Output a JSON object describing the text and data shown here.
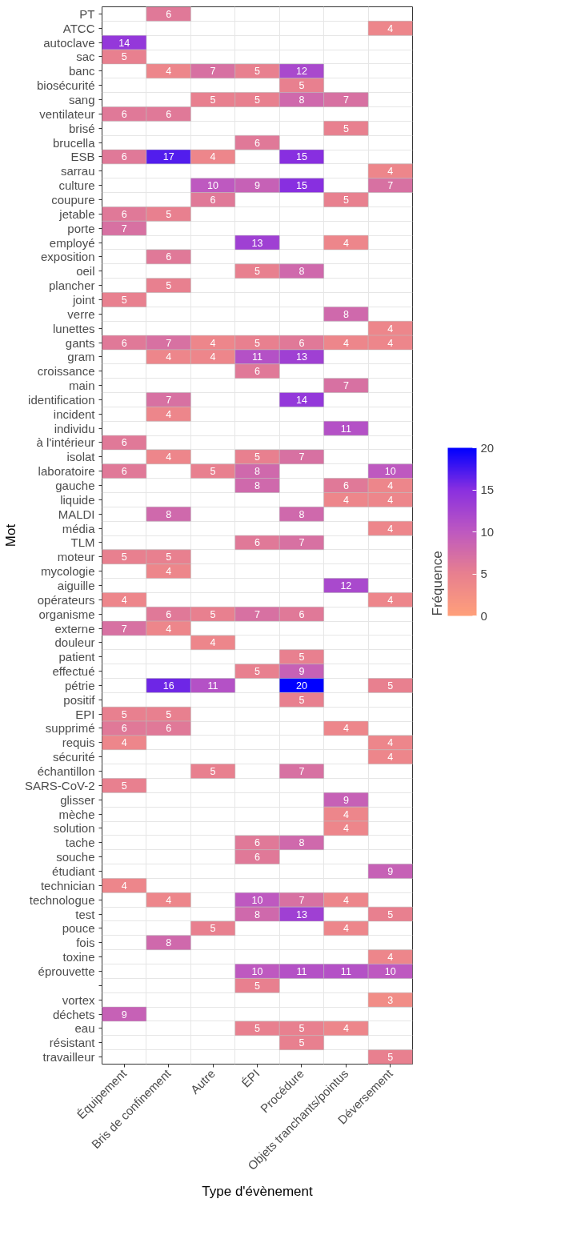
{
  "chart_data": {
    "type": "heatmap",
    "xlabel": "Type d'évènement",
    "ylabel": "Mot",
    "legend_title": "Fréquence",
    "categories": [
      "Équipement",
      "Bris de confinement",
      "Autre",
      "ÉPI",
      "Procédure",
      "Objets tranchants/pointus",
      "Déversement"
    ],
    "y_categories": [
      "PT",
      "ATCC",
      "autoclave",
      "sac",
      "banc",
      "biosécurité",
      "sang",
      "ventilateur",
      "brisé",
      "brucella",
      "ESB",
      "sarrau",
      "culture",
      "coupure",
      "jetable",
      "porte",
      "employé",
      "exposition",
      "oeil",
      "plancher",
      "joint",
      "verre",
      "lunettes",
      "gants",
      "gram",
      "croissance",
      "main",
      "identification",
      "incident",
      "individu",
      "à l'intérieur",
      "isolat",
      "laboratoire",
      "gauche",
      "liquide",
      "MALDI",
      "média",
      "TLM",
      "moteur",
      "mycologie",
      "aiguille",
      "opérateurs",
      "organisme",
      "externe",
      "douleur",
      "patient",
      "effectué",
      "pétrie",
      "positif",
      "EPI",
      "supprimé",
      "requis",
      "sécurité",
      "échantillon",
      "SARS-CoV-2",
      "glisser",
      "mèche",
      "solution",
      "tache",
      "souche",
      "étudiant",
      "technician",
      "technologue",
      "test",
      "pouce",
      "fois",
      "toxine",
      "éprouvette",
      null,
      "vortex",
      "déchets",
      "eau",
      "résistant",
      "travailleur"
    ],
    "cells": [
      [
        null,
        6,
        null,
        null,
        null,
        null,
        null
      ],
      [
        null,
        null,
        null,
        null,
        null,
        null,
        4
      ],
      [
        14,
        null,
        null,
        null,
        null,
        null,
        null
      ],
      [
        5,
        null,
        null,
        null,
        null,
        null,
        null
      ],
      [
        null,
        4,
        7,
        5,
        12,
        null,
        null
      ],
      [
        null,
        null,
        null,
        null,
        5,
        null,
        null
      ],
      [
        null,
        null,
        5,
        5,
        8,
        7,
        null
      ],
      [
        6,
        6,
        null,
        null,
        null,
        null,
        null
      ],
      [
        null,
        null,
        null,
        null,
        null,
        5,
        null
      ],
      [
        null,
        null,
        null,
        6,
        null,
        null,
        null
      ],
      [
        6,
        17,
        4,
        null,
        15,
        null,
        null
      ],
      [
        null,
        null,
        null,
        null,
        null,
        null,
        4
      ],
      [
        null,
        null,
        10,
        9,
        15,
        null,
        7
      ],
      [
        null,
        null,
        6,
        null,
        null,
        5,
        null
      ],
      [
        6,
        5,
        null,
        null,
        null,
        null,
        null
      ],
      [
        7,
        null,
        null,
        null,
        null,
        null,
        null
      ],
      [
        null,
        null,
        null,
        13,
        null,
        4,
        null
      ],
      [
        null,
        6,
        null,
        null,
        null,
        null,
        null
      ],
      [
        null,
        null,
        null,
        5,
        8,
        null,
        null
      ],
      [
        null,
        5,
        null,
        null,
        null,
        null,
        null
      ],
      [
        5,
        null,
        null,
        null,
        null,
        null,
        null
      ],
      [
        null,
        null,
        null,
        null,
        null,
        8,
        null
      ],
      [
        null,
        null,
        null,
        null,
        null,
        null,
        4
      ],
      [
        6,
        7,
        4,
        5,
        6,
        4,
        4
      ],
      [
        null,
        4,
        4,
        11,
        13,
        null,
        null
      ],
      [
        null,
        null,
        null,
        6,
        null,
        null,
        null
      ],
      [
        null,
        null,
        null,
        null,
        null,
        7,
        null
      ],
      [
        null,
        7,
        null,
        null,
        14,
        null,
        null
      ],
      [
        null,
        4,
        null,
        null,
        null,
        null,
        null
      ],
      [
        null,
        null,
        null,
        null,
        null,
        11,
        null
      ],
      [
        6,
        null,
        null,
        null,
        null,
        null,
        null
      ],
      [
        null,
        4,
        null,
        5,
        7,
        null,
        null
      ],
      [
        6,
        null,
        5,
        8,
        null,
        null,
        10
      ],
      [
        null,
        null,
        null,
        8,
        null,
        6,
        4
      ],
      [
        null,
        null,
        null,
        null,
        null,
        4,
        4
      ],
      [
        null,
        8,
        null,
        null,
        8,
        null,
        null
      ],
      [
        null,
        null,
        null,
        null,
        null,
        null,
        4
      ],
      [
        null,
        null,
        null,
        6,
        7,
        null,
        null
      ],
      [
        5,
        5,
        null,
        null,
        null,
        null,
        null
      ],
      [
        null,
        4,
        null,
        null,
        null,
        null,
        null
      ],
      [
        null,
        null,
        null,
        null,
        null,
        12,
        null
      ],
      [
        4,
        null,
        null,
        null,
        null,
        null,
        4
      ],
      [
        null,
        6,
        5,
        7,
        6,
        null,
        null
      ],
      [
        7,
        4,
        null,
        null,
        null,
        null,
        null
      ],
      [
        null,
        null,
        4,
        null,
        null,
        null,
        null
      ],
      [
        null,
        null,
        null,
        null,
        5,
        null,
        null
      ],
      [
        null,
        null,
        null,
        5,
        9,
        null,
        null
      ],
      [
        null,
        16,
        11,
        null,
        20,
        null,
        5
      ],
      [
        null,
        null,
        null,
        null,
        5,
        null,
        null
      ],
      [
        5,
        5,
        null,
        null,
        null,
        null,
        null
      ],
      [
        6,
        6,
        null,
        null,
        null,
        4,
        null
      ],
      [
        4,
        null,
        null,
        null,
        null,
        null,
        4
      ],
      [
        null,
        null,
        null,
        null,
        null,
        null,
        4
      ],
      [
        null,
        null,
        5,
        null,
        7,
        null,
        null
      ],
      [
        5,
        null,
        null,
        null,
        null,
        null,
        null
      ],
      [
        null,
        null,
        null,
        null,
        null,
        9,
        null
      ],
      [
        null,
        null,
        null,
        null,
        null,
        4,
        null
      ],
      [
        null,
        null,
        null,
        null,
        null,
        4,
        null
      ],
      [
        null,
        null,
        null,
        6,
        8,
        null,
        null
      ],
      [
        null,
        null,
        null,
        6,
        null,
        null,
        null
      ],
      [
        null,
        null,
        null,
        null,
        null,
        null,
        9
      ],
      [
        4,
        null,
        null,
        null,
        null,
        null,
        null
      ],
      [
        null,
        4,
        null,
        10,
        7,
        4,
        null
      ],
      [
        null,
        null,
        null,
        8,
        13,
        null,
        5
      ],
      [
        null,
        null,
        5,
        null,
        null,
        4,
        null
      ],
      [
        null,
        8,
        null,
        null,
        null,
        null,
        null
      ],
      [
        null,
        null,
        null,
        null,
        null,
        null,
        4
      ],
      [
        null,
        null,
        null,
        10,
        11,
        11,
        10
      ],
      [
        null,
        null,
        null,
        5,
        null,
        null,
        null
      ],
      [
        null,
        null,
        null,
        null,
        null,
        null,
        3
      ],
      [
        9,
        null,
        null,
        null,
        null,
        null,
        null
      ],
      [
        null,
        null,
        null,
        5,
        5,
        4,
        null
      ],
      [
        null,
        null,
        null,
        null,
        5,
        null,
        null
      ],
      [
        null,
        null,
        null,
        null,
        null,
        null,
        5
      ]
    ],
    "clim": [
      0,
      20
    ],
    "cticks": [
      0,
      5,
      10,
      15,
      20
    ],
    "data_labels": true,
    "grid": true
  }
}
